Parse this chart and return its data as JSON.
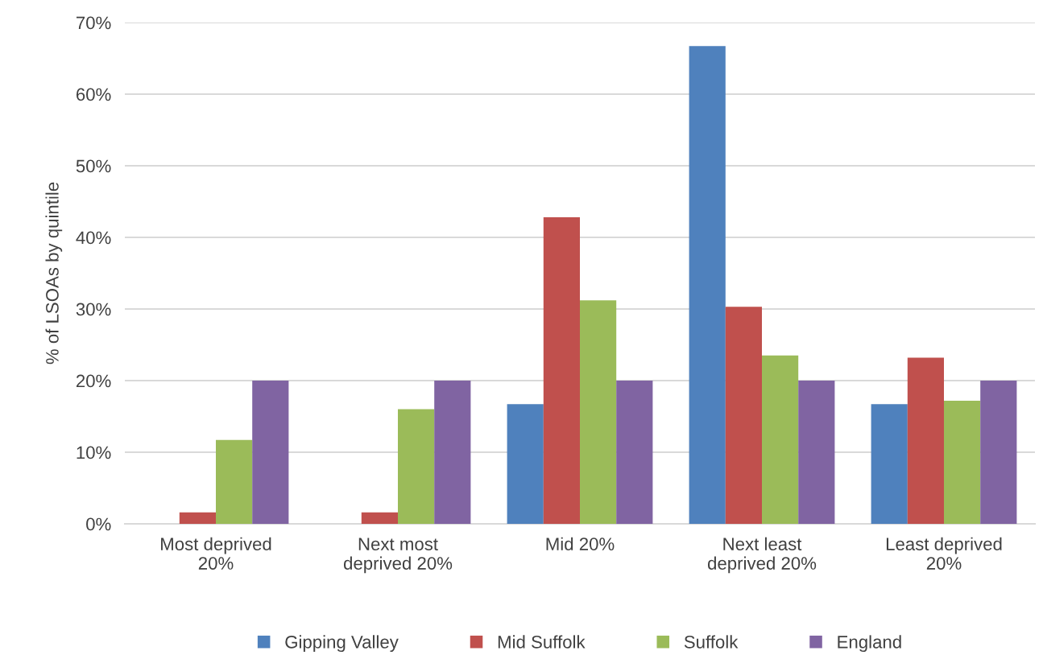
{
  "chart_data": {
    "type": "bar",
    "ylabel": "% of LSOAs by quintile",
    "categories": [
      "Most deprived\n20%",
      "Next most\ndeprived 20%",
      "Mid 20%",
      "Next least\ndeprived 20%",
      "Least deprived\n20%"
    ],
    "series": [
      {
        "name": "Gipping Valley",
        "color": "#4f81bd",
        "values": [
          0,
          0,
          16.7,
          66.7,
          16.7
        ]
      },
      {
        "name": "Mid Suffolk",
        "color": "#c0504d",
        "values": [
          1.6,
          1.6,
          42.8,
          30.3,
          23.2
        ]
      },
      {
        "name": "Suffolk",
        "color": "#9bbb59",
        "values": [
          11.7,
          16.0,
          31.2,
          23.5,
          17.2
        ]
      },
      {
        "name": "England",
        "color": "#8064a2",
        "values": [
          20,
          20,
          20,
          20,
          20
        ]
      }
    ],
    "ylim": [
      0,
      70
    ],
    "yticks": [
      {
        "value": 0,
        "label": "0%"
      },
      {
        "value": 10,
        "label": "10%"
      },
      {
        "value": 20,
        "label": "20%"
      },
      {
        "value": 30,
        "label": "30%"
      },
      {
        "value": 40,
        "label": "40%"
      },
      {
        "value": 50,
        "label": "50%"
      },
      {
        "value": 60,
        "label": "60%"
      },
      {
        "value": 70,
        "label": "70%"
      }
    ],
    "grid": "y",
    "legend": "bottom"
  }
}
